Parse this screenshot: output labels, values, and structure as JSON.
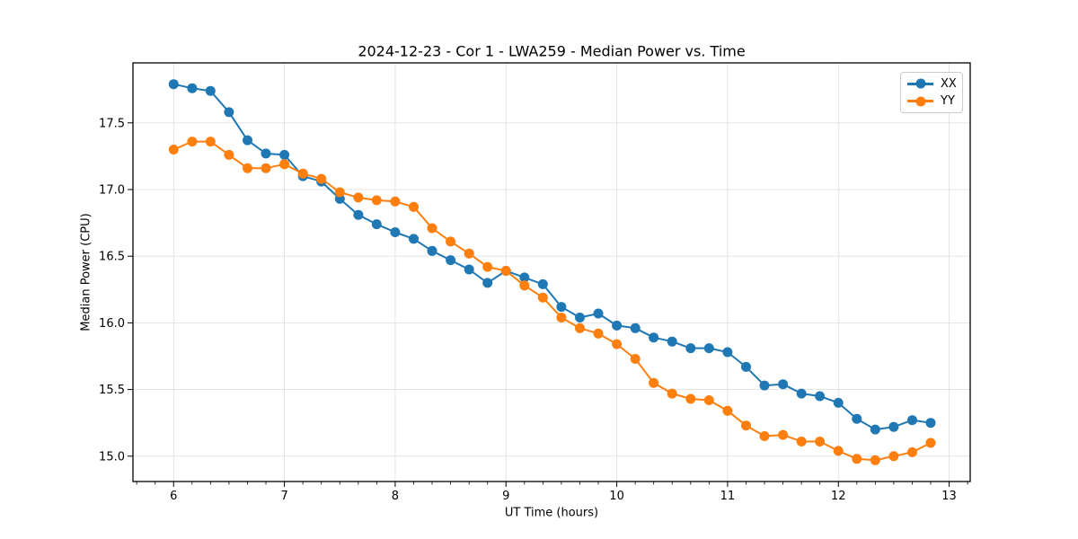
{
  "title": "2024-12-23 - Cor 1 - LWA259 - Median Power vs. Time",
  "colors": {
    "background": "#ffffff",
    "grid": "#e0e0e0",
    "spine": "#000000",
    "tick": "#000000",
    "series_xx": "#1f77b4",
    "series_yy": "#ff7f0e"
  },
  "chart_data": {
    "type": "line",
    "title": "2024-12-23 - Cor 1 - LWA259 - Median Power vs. Time",
    "xlabel": "UT Time (hours)",
    "ylabel": "Median Power (CPU)",
    "xlim": [
      5.633,
      13.19
    ],
    "ylim": [
      14.81,
      17.95
    ],
    "xticks": [
      6,
      7,
      8,
      9,
      10,
      11,
      12,
      13
    ],
    "yticks": [
      15.0,
      15.5,
      16.0,
      16.5,
      17.0,
      17.5
    ],
    "x_minor_tick_step": 0.16667,
    "grid": true,
    "legend_position": "upper right",
    "marker": "circle",
    "x": [
      6.0,
      6.167,
      6.333,
      6.5,
      6.667,
      6.833,
      7.0,
      7.167,
      7.333,
      7.5,
      7.667,
      7.833,
      8.0,
      8.167,
      8.333,
      8.5,
      8.667,
      8.833,
      9.0,
      9.167,
      9.333,
      9.5,
      9.667,
      9.833,
      10.0,
      10.167,
      10.333,
      10.5,
      10.667,
      10.833,
      11.0,
      11.167,
      11.333,
      11.5,
      11.667,
      11.833,
      12.0,
      12.167,
      12.333,
      12.5,
      12.667,
      12.833
    ],
    "series": [
      {
        "name": "XX",
        "color": "#1f77b4",
        "values": [
          17.79,
          17.76,
          17.74,
          17.58,
          17.37,
          17.27,
          17.26,
          17.1,
          17.06,
          16.93,
          16.81,
          16.74,
          16.68,
          16.63,
          16.54,
          16.47,
          16.4,
          16.3,
          16.39,
          16.34,
          16.29,
          16.12,
          16.04,
          16.07,
          15.98,
          15.96,
          15.89,
          15.86,
          15.81,
          15.81,
          15.78,
          15.67,
          15.53,
          15.54,
          15.47,
          15.45,
          15.4,
          15.28,
          15.2,
          15.22,
          15.27,
          15.25
        ]
      },
      {
        "name": "YY",
        "color": "#ff7f0e",
        "values": [
          17.3,
          17.36,
          17.36,
          17.26,
          17.16,
          17.16,
          17.19,
          17.12,
          17.08,
          16.98,
          16.94,
          16.92,
          16.91,
          16.87,
          16.71,
          16.61,
          16.52,
          16.42,
          16.39,
          16.28,
          16.19,
          16.04,
          15.96,
          15.92,
          15.84,
          15.73,
          15.55,
          15.47,
          15.43,
          15.42,
          15.34,
          15.23,
          15.15,
          15.16,
          15.11,
          15.11,
          15.04,
          14.98,
          14.97,
          15.0,
          15.03,
          15.1
        ]
      }
    ]
  }
}
